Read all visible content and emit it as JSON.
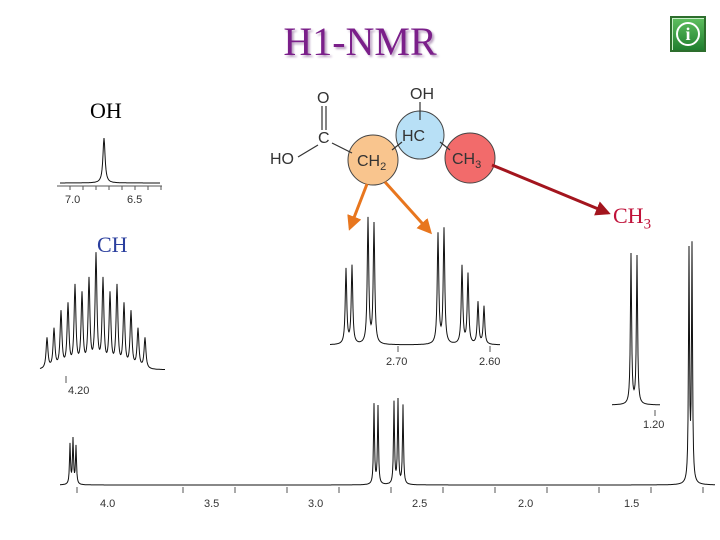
{
  "title": "H1-NMR",
  "info_button_glyph": "i",
  "labels": {
    "oh": "OH",
    "ch": "CH",
    "ch3_main": "CH",
    "ch3_sub": "3"
  },
  "molecule": {
    "o_top": "O",
    "c": "C",
    "ho": "HO",
    "oh_top": "OH",
    "hc": "HC",
    "ch2_main": "CH",
    "ch2_sub": "2",
    "ch3_main": "CH",
    "ch3_sub": "3"
  },
  "colors": {
    "title": "#7b1f8a",
    "label_oh": "#000000",
    "label_ch": "#2b3f9e",
    "label_ch3": "#c0123a",
    "ch2_fill": "#f9c58e",
    "hc_fill": "#b8e0f6",
    "ch3_fill": "#f26b6b",
    "orange_arrow": "#e8761e",
    "red_arrow": "#a3151e"
  },
  "main_axis": {
    "ticks": [
      "4.0",
      "3.5",
      "3.0",
      "2.5",
      "2.0",
      "1.5"
    ]
  },
  "insets": {
    "oh": {
      "ticks": [
        "7.0",
        "6.5"
      ]
    },
    "ch": {
      "ticks": [
        "4.20"
      ]
    },
    "ch2": {
      "ticks": [
        "2.70",
        "2.60"
      ]
    },
    "ch3": {
      "ticks": [
        "1.20"
      ]
    }
  }
}
